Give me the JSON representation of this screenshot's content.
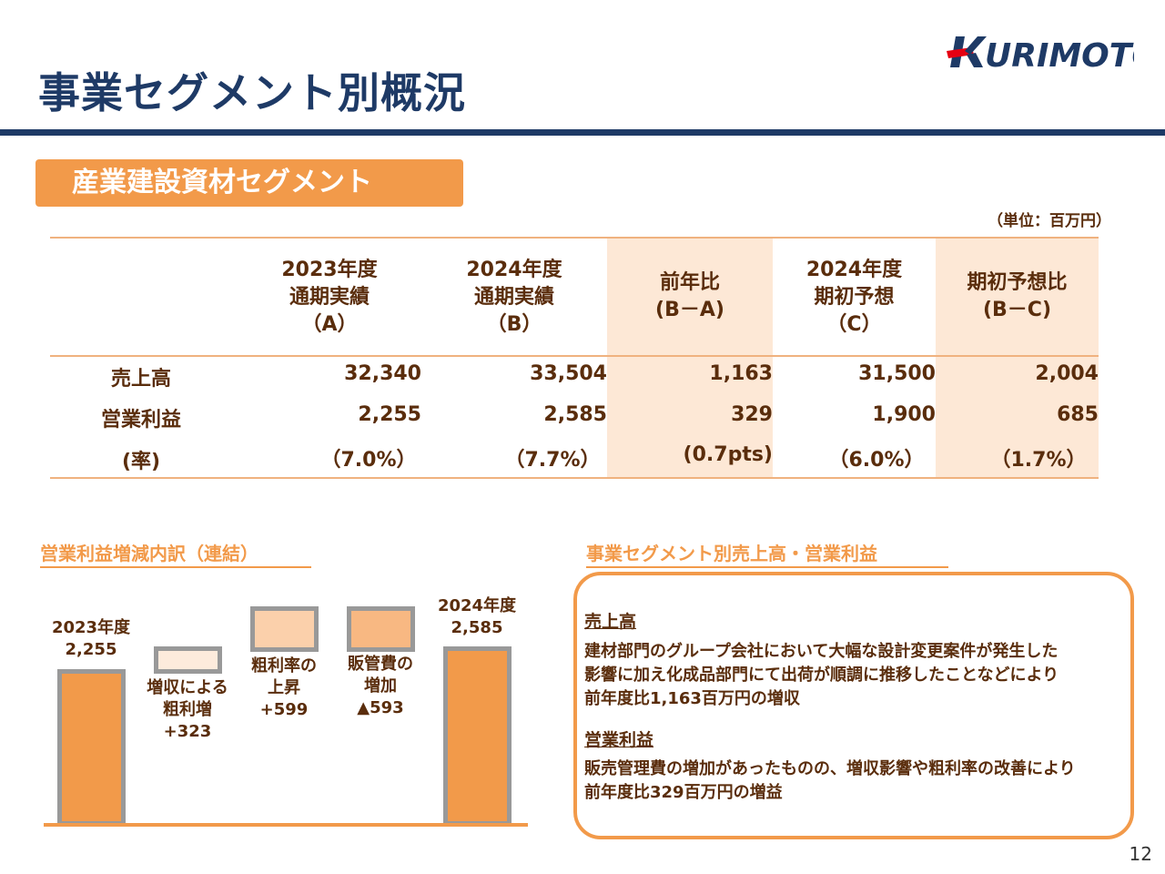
{
  "header": {
    "title": "事業セグメント別概況",
    "logo_text": "KURIMOTO",
    "brand_colors": {
      "navy": "#1e3a66",
      "red": "#e60012"
    }
  },
  "segment": {
    "name": "産業建設資材セグメント",
    "unit": "（単位：百万円）"
  },
  "table": {
    "columns": [
      {
        "line1": "2023年度",
        "line2": "通期実績",
        "line3": "（A）"
      },
      {
        "line1": "2024年度",
        "line2": "通期実績",
        "line3": "（B）"
      },
      {
        "line1": "前年比",
        "line2": "(B－A)",
        "line3": ""
      },
      {
        "line1": "2024年度",
        "line2": "期初予想",
        "line3": "（C）"
      },
      {
        "line1": "期初予想比",
        "line2": "(B－C)",
        "line3": ""
      }
    ],
    "rows": [
      {
        "label": "売上高",
        "values": [
          "32,340",
          "33,504",
          "1,163",
          "31,500",
          "2,004"
        ]
      },
      {
        "label": "営業利益",
        "values": [
          "2,255",
          "2,585",
          "329",
          "1,900",
          "685"
        ]
      },
      {
        "label": "(率)",
        "values": [
          "（7.0%）",
          "（7.7%）",
          "(0.7pts)",
          "（6.0%）",
          "（1.7%）"
        ]
      }
    ],
    "shade_color": "#fde8d6"
  },
  "waterfall": {
    "title": "営業利益増減内訳（連結）",
    "start": {
      "year": "2023年度",
      "value": "2,255"
    },
    "end": {
      "year": "2024年度",
      "value": "2,585"
    },
    "steps": [
      {
        "line1": "増収による",
        "line2": "粗利増",
        "line3": "+323",
        "color": "#fdebdc"
      },
      {
        "line1": "粗利率の",
        "line2": "上昇",
        "line3": "+599",
        "color": "#fbd0ab"
      },
      {
        "line1": "販管費の",
        "line2": "増加",
        "line3": "▲593",
        "color": "#f8b882"
      }
    ],
    "bar_color": "#f29a4a"
  },
  "summary": {
    "title": "事業セグメント別売上高・営業利益",
    "sales_head": "売上高",
    "sales_lines": [
      "建材部門のグループ会社において大幅な設計変更案件が発生した",
      "影響に加え化成品部門にて出荷が順調に推移したことなどにより",
      "前年度比1,163百万円の増収"
    ],
    "profit_head": "営業利益",
    "profit_lines": [
      "販売管理費の増加があったものの、増収影響や粗利率の改善により",
      "前年度比329百万円の増益"
    ]
  },
  "page_number": "12"
}
